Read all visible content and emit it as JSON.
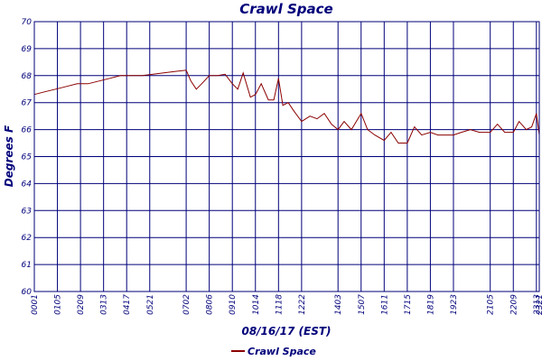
{
  "colors": {
    "axis": "#00007a",
    "grid": "#00007a",
    "series": "#8b0000",
    "background": "#ffffff"
  },
  "chart_data": {
    "type": "line",
    "title": "Crawl Space",
    "xlabel": "08/16/17 (EST)",
    "ylabel": "Degrees F",
    "ylim": [
      60,
      70
    ],
    "yticks": [
      60,
      61,
      62,
      63,
      64,
      65,
      66,
      67,
      68,
      69,
      70
    ],
    "xlim_hours": [
      0.0167,
      23.35
    ],
    "xticks": [
      "00:01",
      "01:05",
      "02:09",
      "03:13",
      "04:17",
      "05:21",
      "07:02",
      "08:06",
      "09:10",
      "10:14",
      "11:18",
      "12:22",
      "14:03",
      "15:07",
      "16:11",
      "17:15",
      "18:19",
      "19:23",
      "21:05",
      "22:09",
      "23:13",
      "23:21"
    ],
    "grid": true,
    "legend_position": "bottom",
    "series": [
      {
        "name": "Crawl Space",
        "x": [
          "00:01",
          "00:30",
          "01:00",
          "01:30",
          "02:00",
          "02:30",
          "03:00",
          "03:30",
          "04:00",
          "04:30",
          "05:00",
          "05:30",
          "06:00",
          "06:30",
          "07:02",
          "07:15",
          "07:30",
          "07:45",
          "08:06",
          "08:30",
          "08:50",
          "09:10",
          "09:25",
          "09:40",
          "10:00",
          "10:14",
          "10:30",
          "10:50",
          "11:05",
          "11:18",
          "11:30",
          "11:45",
          "12:00",
          "12:22",
          "12:45",
          "13:05",
          "13:25",
          "13:45",
          "14:03",
          "14:20",
          "14:40",
          "15:07",
          "15:25",
          "15:45",
          "16:11",
          "16:30",
          "16:50",
          "17:15",
          "17:35",
          "17:55",
          "18:19",
          "18:40",
          "19:00",
          "19:23",
          "19:45",
          "20:10",
          "20:35",
          "21:05",
          "21:25",
          "21:45",
          "22:09",
          "22:25",
          "22:45",
          "23:00",
          "23:13",
          "23:21"
        ],
        "y": [
          67.3,
          67.4,
          67.5,
          67.6,
          67.7,
          67.7,
          67.8,
          67.9,
          68.0,
          68.0,
          68.0,
          68.05,
          68.1,
          68.15,
          68.2,
          67.8,
          67.5,
          67.7,
          68.0,
          68.0,
          68.05,
          67.7,
          67.5,
          68.1,
          67.2,
          67.3,
          67.7,
          67.1,
          67.1,
          67.9,
          66.9,
          67.0,
          66.7,
          66.3,
          66.5,
          66.4,
          66.6,
          66.2,
          66.0,
          66.3,
          66.0,
          66.6,
          66.0,
          65.8,
          65.6,
          65.9,
          65.5,
          65.5,
          66.1,
          65.8,
          65.9,
          65.8,
          65.8,
          65.8,
          65.9,
          66.0,
          65.9,
          65.9,
          66.2,
          65.9,
          65.9,
          66.3,
          66.0,
          66.1,
          66.6,
          65.8
        ]
      }
    ]
  }
}
